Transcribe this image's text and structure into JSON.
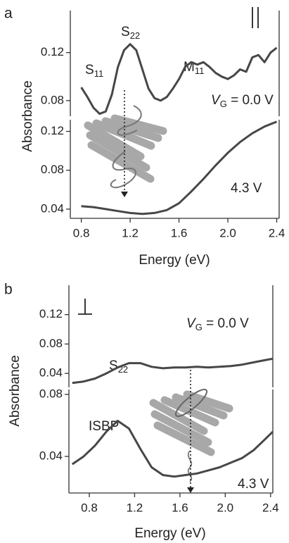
{
  "chart_data": [
    {
      "type": "line",
      "panel": "a",
      "xlabel": "Energy (eV)",
      "ylabel": "Absorbance",
      "color": "#474747",
      "xlim": [
        0.71,
        2.42
      ],
      "xticks": [
        0.8,
        1.2,
        1.6,
        {
          "value": 2,
          "label": "2.0"
        },
        2.4
      ],
      "subplots": [
        {
          "ylim": [
            0.067,
            0.155
          ],
          "yticks": [
            0.08,
            0.12
          ],
          "x": [
            0.8,
            0.85,
            0.9,
            0.95,
            1.0,
            1.05,
            1.1,
            1.15,
            1.2,
            1.25,
            1.3,
            1.35,
            1.4,
            1.45,
            1.5,
            1.55,
            1.6,
            1.65,
            1.7,
            1.75,
            1.8,
            1.85,
            1.9,
            1.95,
            2.0,
            2.05,
            2.1,
            2.15,
            2.2,
            2.25,
            2.3,
            2.35,
            2.4
          ],
          "values": [
            0.091,
            0.083,
            0.074,
            0.069,
            0.071,
            0.085,
            0.108,
            0.122,
            0.127,
            0.122,
            0.106,
            0.09,
            0.082,
            0.08,
            0.083,
            0.09,
            0.098,
            0.108,
            0.112,
            0.11,
            0.112,
            0.108,
            0.103,
            0.1,
            0.098,
            0.101,
            0.106,
            0.104,
            0.116,
            0.118,
            0.112,
            0.12,
            0.124
          ]
        },
        {
          "ylim": [
            0.0305,
            0.132
          ],
          "yticks": [
            0.04,
            0.08,
            0.12
          ],
          "x": [
            0.8,
            0.9,
            1.0,
            1.1,
            1.2,
            1.3,
            1.4,
            1.5,
            1.6,
            1.7,
            1.8,
            1.9,
            2.0,
            2.1,
            2.2,
            2.3,
            2.4
          ],
          "values": [
            0.043,
            0.042,
            0.04,
            0.038,
            0.036,
            0.035,
            0.036,
            0.039,
            0.046,
            0.058,
            0.071,
            0.085,
            0.098,
            0.109,
            0.118,
            0.125,
            0.13
          ]
        }
      ],
      "annotations": [
        {
          "text": "S",
          "sub": "11"
        },
        {
          "text": "S",
          "sub": "22"
        },
        {
          "text": "M",
          "sub": "11"
        },
        {
          "text": "V",
          "sub": "G",
          "rest": " = 0.0 V"
        },
        {
          "text": "4.3 V"
        }
      ]
    },
    {
      "type": "line",
      "panel": "b",
      "xlabel": "Energy (eV)",
      "ylabel": "Absorbance",
      "color": "#474747",
      "xlim": [
        0.62,
        2.42
      ],
      "xticks": [
        0.8,
        1.2,
        1.6,
        {
          "value": 2,
          "label": "2.0"
        },
        2.4
      ],
      "subplots": [
        {
          "ylim": [
            0.021,
            0.16
          ],
          "yticks": [
            0.04,
            0.08,
            0.12
          ],
          "x": [
            0.65,
            0.75,
            0.85,
            0.95,
            1.05,
            1.15,
            1.25,
            1.35,
            1.45,
            1.55,
            1.65,
            1.75,
            1.85,
            1.95,
            2.05,
            2.15,
            2.25,
            2.35,
            2.42
          ],
          "values": [
            0.027,
            0.029,
            0.033,
            0.04,
            0.048,
            0.054,
            0.054,
            0.049,
            0.047,
            0.048,
            0.048,
            0.049,
            0.048,
            0.049,
            0.05,
            0.052,
            0.055,
            0.058,
            0.06
          ]
        },
        {
          "ylim": [
            0.0164,
            0.0832
          ],
          "yticks": [
            0.04,
            0.08
          ],
          "x": [
            0.65,
            0.75,
            0.85,
            0.95,
            1.05,
            1.15,
            1.25,
            1.35,
            1.45,
            1.55,
            1.65,
            1.75,
            1.85,
            1.95,
            2.05,
            2.15,
            2.25,
            2.35,
            2.42
          ],
          "values": [
            0.035,
            0.04,
            0.047,
            0.056,
            0.063,
            0.058,
            0.045,
            0.033,
            0.028,
            0.027,
            0.028,
            0.029,
            0.031,
            0.033,
            0.036,
            0.039,
            0.044,
            0.051,
            0.056
          ]
        }
      ],
      "annotations": [
        {
          "text": "V",
          "sub": "G",
          "rest": " = 0.0 V"
        },
        {
          "text": "S",
          "sub": "22"
        },
        {
          "text": "ISBP"
        },
        {
          "text": "4.3 V"
        }
      ]
    }
  ]
}
